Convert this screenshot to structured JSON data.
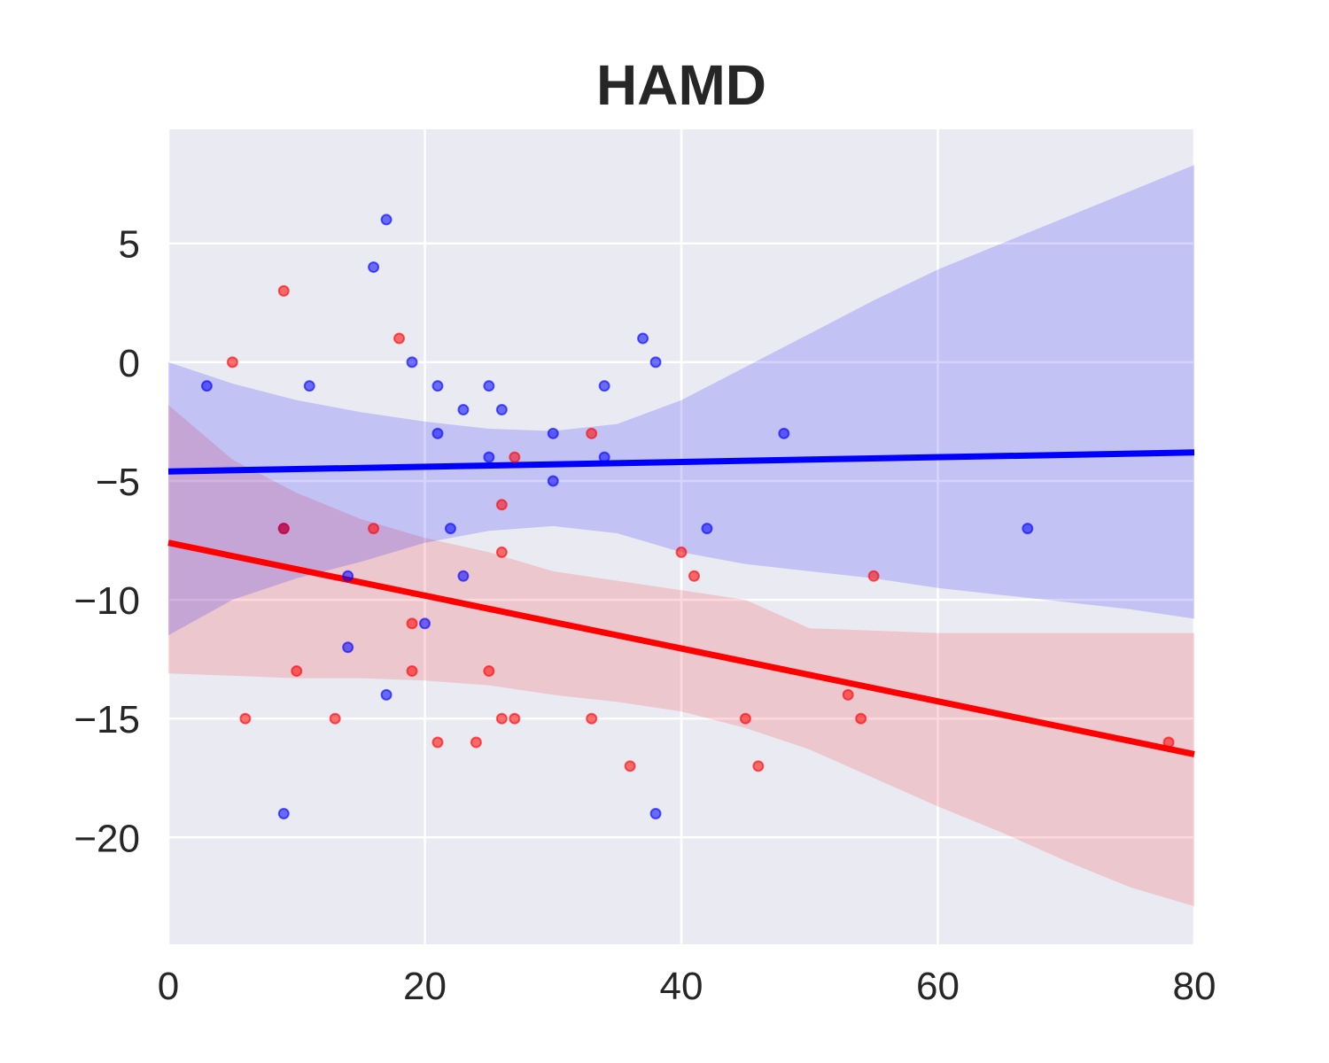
{
  "chart_data": {
    "type": "scatter",
    "title": "HAMD",
    "xlabel": "",
    "ylabel": "",
    "xlim": [
      0,
      80
    ],
    "ylim": [
      -24.5,
      9.8
    ],
    "xticks": [
      "0",
      "20",
      "40",
      "60",
      "80"
    ],
    "yticks": [
      "5",
      "0",
      "−5",
      "−10",
      "−15",
      "−20"
    ],
    "xtick_values": [
      0,
      20,
      40,
      60,
      80
    ],
    "ytick_values": [
      5,
      0,
      -5,
      -10,
      -15,
      -20
    ],
    "grid": true,
    "background": "#eaeaf2",
    "series": [
      {
        "color": "#0000ff",
        "points": [
          [
            3,
            -1
          ],
          [
            9,
            -7
          ],
          [
            9,
            -19
          ],
          [
            11,
            -1
          ],
          [
            14,
            -9
          ],
          [
            14,
            -12
          ],
          [
            16,
            4
          ],
          [
            17,
            6
          ],
          [
            17,
            -14
          ],
          [
            19,
            0
          ],
          [
            20,
            -11
          ],
          [
            21,
            -1
          ],
          [
            21,
            -3
          ],
          [
            22,
            -7
          ],
          [
            23,
            -2
          ],
          [
            23,
            -9
          ],
          [
            25,
            -1
          ],
          [
            25,
            -4
          ],
          [
            26,
            -2
          ],
          [
            30,
            -3
          ],
          [
            30,
            -5
          ],
          [
            34,
            -1
          ],
          [
            34,
            -4
          ],
          [
            37,
            1
          ],
          [
            38,
            0
          ],
          [
            38,
            -19
          ],
          [
            42,
            -7
          ],
          [
            48,
            -3
          ],
          [
            67,
            -7
          ]
        ],
        "fit": [
          [
            0,
            -4.6
          ],
          [
            80,
            -3.8
          ]
        ],
        "ci_upper": [
          [
            0,
            0
          ],
          [
            5,
            -0.9
          ],
          [
            10,
            -1.6
          ],
          [
            15,
            -2.1
          ],
          [
            20,
            -2.5
          ],
          [
            25,
            -2.8
          ],
          [
            30,
            -2.9
          ],
          [
            35,
            -2.6
          ],
          [
            40,
            -1.6
          ],
          [
            45,
            -0.2
          ],
          [
            50,
            1.2
          ],
          [
            55,
            2.6
          ],
          [
            60,
            3.9
          ],
          [
            65,
            5.0
          ],
          [
            70,
            6.1
          ],
          [
            75,
            7.2
          ],
          [
            80,
            8.3
          ]
        ],
        "ci_lower": [
          [
            0,
            -11.5
          ],
          [
            5,
            -10.0
          ],
          [
            10,
            -9.1
          ],
          [
            15,
            -8.4
          ],
          [
            20,
            -7.6
          ],
          [
            25,
            -7.1
          ],
          [
            30,
            -6.9
          ],
          [
            35,
            -7.2
          ],
          [
            40,
            -8.0
          ],
          [
            45,
            -8.5
          ],
          [
            50,
            -8.8
          ],
          [
            55,
            -9.1
          ],
          [
            60,
            -9.5
          ],
          [
            65,
            -9.8
          ],
          [
            70,
            -10.1
          ],
          [
            75,
            -10.4
          ],
          [
            80,
            -10.8
          ]
        ]
      },
      {
        "color": "#ff0000",
        "points": [
          [
            5,
            0
          ],
          [
            6,
            -15
          ],
          [
            9,
            3
          ],
          [
            9,
            -7
          ],
          [
            10,
            -13
          ],
          [
            13,
            -15
          ],
          [
            16,
            -7
          ],
          [
            18,
            1
          ],
          [
            19,
            -11
          ],
          [
            19,
            -13
          ],
          [
            21,
            -16
          ],
          [
            24,
            -16
          ],
          [
            25,
            -13
          ],
          [
            26,
            -6
          ],
          [
            26,
            -8
          ],
          [
            26,
            -15
          ],
          [
            27,
            -4
          ],
          [
            27,
            -15
          ],
          [
            33,
            -3
          ],
          [
            33,
            -15
          ],
          [
            36,
            -17
          ],
          [
            40,
            -8
          ],
          [
            41,
            -9
          ],
          [
            45,
            -15
          ],
          [
            46,
            -17
          ],
          [
            53,
            -14
          ],
          [
            54,
            -15
          ],
          [
            55,
            -9
          ],
          [
            78,
            -16
          ]
        ],
        "fit": [
          [
            0,
            -7.6
          ],
          [
            80,
            -16.5
          ]
        ],
        "ci_upper": [
          [
            0,
            -1.8
          ],
          [
            5,
            -4.1
          ],
          [
            10,
            -5.5
          ],
          [
            15,
            -6.6
          ],
          [
            20,
            -7.4
          ],
          [
            25,
            -8.0
          ],
          [
            30,
            -8.8
          ],
          [
            35,
            -9.2
          ],
          [
            40,
            -9.6
          ],
          [
            45,
            -10.0
          ],
          [
            50,
            -11.2
          ],
          [
            55,
            -11.3
          ],
          [
            60,
            -11.4
          ],
          [
            65,
            -11.4
          ],
          [
            70,
            -11.4
          ],
          [
            75,
            -11.4
          ],
          [
            80,
            -11.4
          ]
        ],
        "ci_lower": [
          [
            0,
            -13.1
          ],
          [
            5,
            -13.2
          ],
          [
            10,
            -13.3
          ],
          [
            15,
            -13.3
          ],
          [
            20,
            -13.4
          ],
          [
            25,
            -13.6
          ],
          [
            30,
            -14.0
          ],
          [
            35,
            -14.3
          ],
          [
            40,
            -14.7
          ],
          [
            45,
            -15.4
          ],
          [
            50,
            -16.3
          ],
          [
            55,
            -17.5
          ],
          [
            60,
            -18.7
          ],
          [
            65,
            -19.8
          ],
          [
            70,
            -21.0
          ],
          [
            75,
            -22.1
          ],
          [
            80,
            -22.9
          ]
        ]
      }
    ]
  }
}
